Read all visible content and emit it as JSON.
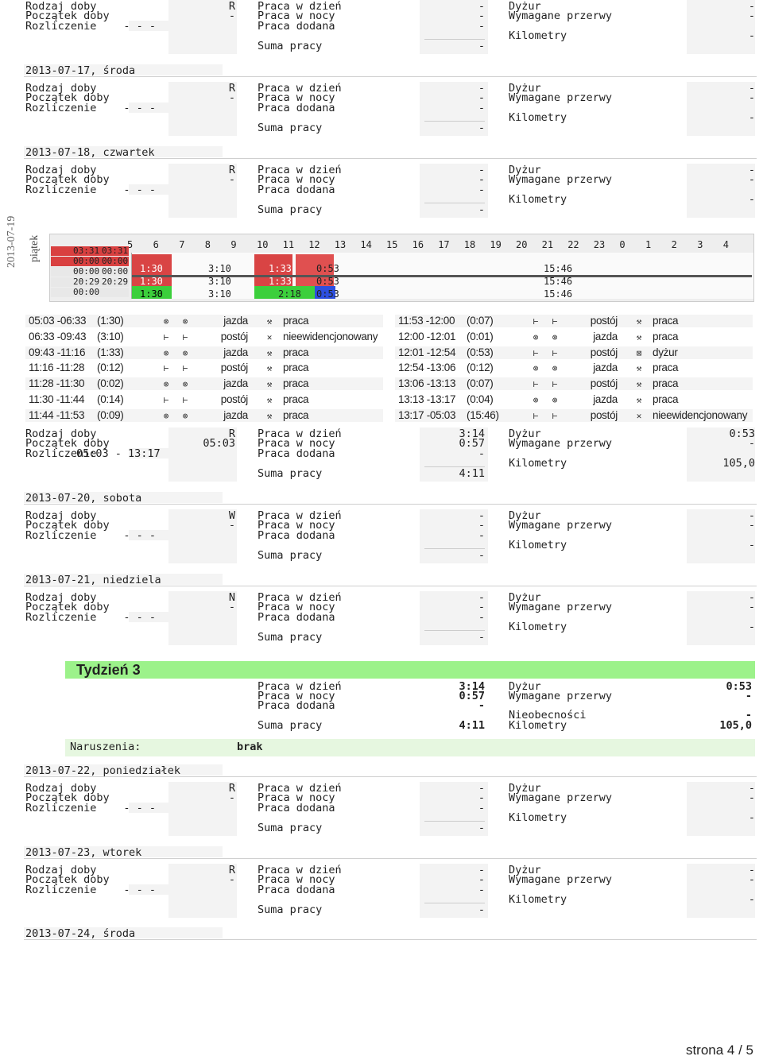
{
  "labels": {
    "rodzaj": "Rodzaj doby",
    "poczatek": "Początek doby",
    "rozliczenie": "Rozliczenie",
    "praca_dzien": "Praca w dzień",
    "praca_noc": "Praca w nocy",
    "praca_dodana": "Praca dodana",
    "suma": "Suma pracy",
    "dyzur": "Dyżur",
    "przerwy": "Wymagane przerwy",
    "km": "Kilometry",
    "nieobecnosci": "Nieobecności"
  },
  "days": [
    {
      "date": "",
      "rodzaj": "R",
      "poczatek": "-",
      "rozliczenie": "- - -",
      "dzien": "-",
      "noc": "-",
      "dodana": "-",
      "suma": "-",
      "dyzur": "-",
      "przerwy": "-",
      "km": "-"
    },
    {
      "date": "2013-07-17, środa",
      "rodzaj": "R",
      "poczatek": "-",
      "rozliczenie": "- - -",
      "dzien": "-",
      "noc": "-",
      "dodana": "-",
      "suma": "-",
      "dyzur": "-",
      "przerwy": "-",
      "km": "-"
    },
    {
      "date": "2013-07-18, czwartek",
      "rodzaj": "R",
      "poczatek": "-",
      "rozliczenie": "- - -",
      "dzien": "-",
      "noc": "-",
      "dodana": "-",
      "suma": "-",
      "dyzur": "-",
      "przerwy": "-",
      "km": "-"
    },
    {
      "date": "",
      "rodzaj": "R",
      "poczatek": "05:03",
      "rozliczenie": "05:03 - 13:17",
      "dzien": "3:14",
      "noc": "0:57",
      "dodana": "-",
      "suma": "4:11",
      "dyzur": "0:53",
      "przerwy": "-",
      "km": "105,0"
    },
    {
      "date": "2013-07-20, sobota",
      "rodzaj": "W",
      "poczatek": "-",
      "rozliczenie": "- - -",
      "dzien": "-",
      "noc": "-",
      "dodana": "-",
      "suma": "-",
      "dyzur": "-",
      "przerwy": "-",
      "km": "-"
    },
    {
      "date": "2013-07-21, niedziela",
      "rodzaj": "N",
      "poczatek": "-",
      "rozliczenie": "- - -",
      "dzien": "-",
      "noc": "-",
      "dodana": "-",
      "suma": "-",
      "dyzur": "-",
      "przerwy": "-",
      "km": "-"
    },
    {
      "date": "2013-07-22, poniedziałek",
      "rodzaj": "R",
      "poczatek": "-",
      "rozliczenie": "- - -",
      "dzien": "-",
      "noc": "-",
      "dodana": "-",
      "suma": "-",
      "dyzur": "-",
      "przerwy": "-",
      "km": "-"
    },
    {
      "date": "2013-07-23, wtorek",
      "rodzaj": "R",
      "poczatek": "-",
      "rozliczenie": "- - -",
      "dzien": "-",
      "noc": "-",
      "dodana": "-",
      "suma": "-",
      "dyzur": "-",
      "przerwy": "-",
      "km": "-"
    }
  ],
  "last_date": "2013-07-24, środa",
  "chart_label": {
    "date": "2013-07-19",
    "day": "piątek"
  },
  "chart_hours": [
    "5",
    "6",
    "7",
    "8",
    "9",
    "10",
    "11",
    "12",
    "13",
    "14",
    "15",
    "16",
    "17",
    "18",
    "19",
    "20",
    "21",
    "22",
    "23",
    "0",
    "1",
    "2",
    "3",
    "4"
  ],
  "chart_legend": [
    {
      "a": "03:31",
      "b": "03:31",
      "color": "#d94040"
    },
    {
      "a": "00:00",
      "b": "00:00",
      "color": "#d94040"
    },
    {
      "a": "00:00",
      "b": "00:00",
      "color": "#e8e8e8"
    },
    {
      "a": "20:29",
      "b": "20:29",
      "color": "#e8e8e8"
    },
    {
      "a": "00:00",
      "b": "",
      "color": "#e8e8e8"
    }
  ],
  "chart_marks": {
    "m1": "1:30",
    "m2": "1:30",
    "m3": "1:30",
    "t1": "3:10",
    "t2": "3:10",
    "t3": "3:10",
    "n1": "1:33",
    "n2": "1:33",
    "n3": "2:18",
    "o1": "0:53",
    "o2": "0:53",
    "o3": "0:53",
    "p1": "15:46",
    "p2": "15:46",
    "p3": "15:46"
  },
  "activities_left": [
    {
      "time": "05:03 -06:33",
      "dur": "(1:30)",
      "act": "jazda",
      "type": "praca"
    },
    {
      "time": "06:33 -09:43",
      "dur": "(3:10)",
      "act": "postój",
      "type": "nieewidencjonowany"
    },
    {
      "time": "09:43 -11:16",
      "dur": "(1:33)",
      "act": "jazda",
      "type": "praca"
    },
    {
      "time": "11:16 -11:28",
      "dur": "(0:12)",
      "act": "postój",
      "type": "praca"
    },
    {
      "time": "11:28 -11:30",
      "dur": "(0:02)",
      "act": "jazda",
      "type": "praca"
    },
    {
      "time": "11:30 -11:44",
      "dur": "(0:14)",
      "act": "postój",
      "type": "praca"
    },
    {
      "time": "11:44 -11:53",
      "dur": "(0:09)",
      "act": "jazda",
      "type": "praca"
    }
  ],
  "activities_right": [
    {
      "time": "11:53 -12:00",
      "dur": "(0:07)",
      "act": "postój",
      "type": "praca"
    },
    {
      "time": "12:00 -12:01",
      "dur": "(0:01)",
      "act": "jazda",
      "type": "praca"
    },
    {
      "time": "12:01 -12:54",
      "dur": "(0:53)",
      "act": "postój",
      "type": "dyżur"
    },
    {
      "time": "12:54 -13:06",
      "dur": "(0:12)",
      "act": "jazda",
      "type": "praca"
    },
    {
      "time": "13:06 -13:13",
      "dur": "(0:07)",
      "act": "postój",
      "type": "praca"
    },
    {
      "time": "13:13 -13:17",
      "dur": "(0:04)",
      "act": "jazda",
      "type": "praca"
    },
    {
      "time": "13:17 -05:03",
      "dur": "(15:46)",
      "act": "postój",
      "type": "nieewidencjonowany"
    }
  ],
  "week": {
    "title": "Tydzień 3",
    "dzien": "3:14",
    "noc": "0:57",
    "dodana": "-",
    "suma": "4:11",
    "dyzur": "0:53",
    "przerwy": "-",
    "nieob": "-",
    "km": "105,0",
    "naruszenia_label": "Naruszenia:",
    "naruszenia": "brak"
  },
  "footer": "strona 4 / 5"
}
